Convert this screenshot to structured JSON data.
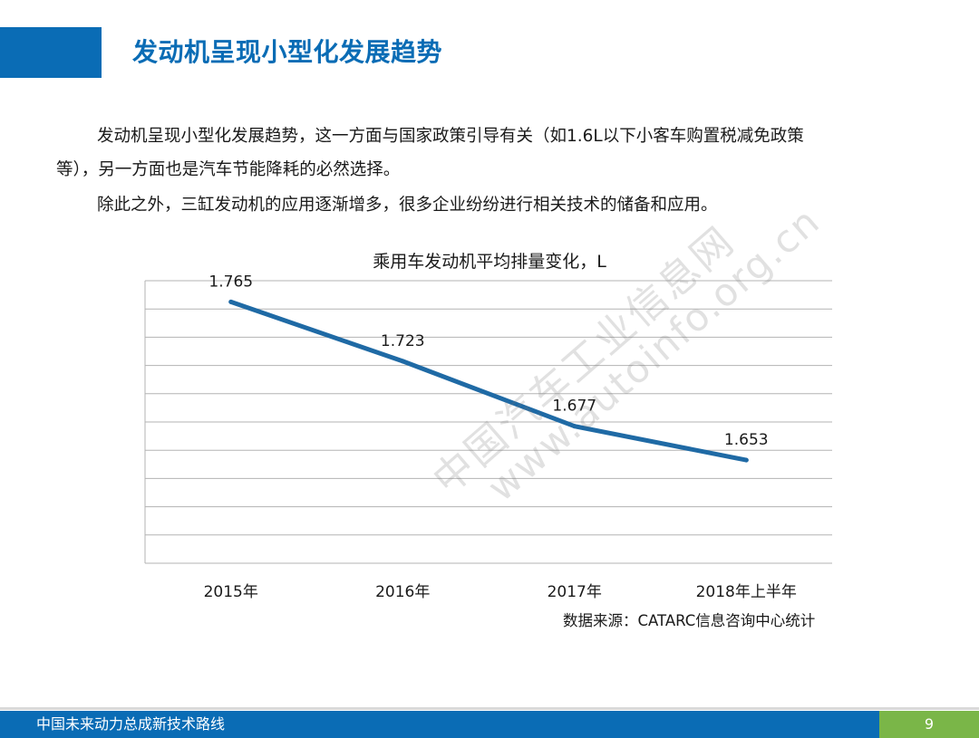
{
  "slide": {
    "title": "发动机呈现小型化发展趋势",
    "paragraph_line1": "发动机呈现小型化发展趋势，这一方面与国家政策引导有关（如1.6L以下小客车购置税减免政策",
    "paragraph_line2": "等），另一方面也是汽车节能降耗的必然选择。",
    "paragraph2": "除此之外，三缸发动机的应用逐渐增多，很多企业纷纷进行相关技术的储备和应用。",
    "source": "数据来源：CATARC信息咨询中心统计",
    "watermark_cn": "中国汽车工业信息网",
    "watermark_en": "www.autoinfo.org.cn"
  },
  "footer": {
    "text": "中国未来动力总成新技术路线",
    "page_number": "9"
  },
  "colors": {
    "accent": "#0a6cb5",
    "footer_green": "#7ab648",
    "line": "#1f6aa5",
    "grid": "#b3b3b3"
  },
  "chart_data": {
    "type": "line",
    "title": "乘用车发动机平均排量变化，L",
    "categories": [
      "2015年",
      "2016年",
      "2017年",
      "2018年上半年"
    ],
    "series": [
      {
        "values": [
          1.765,
          1.723,
          1.677,
          1.653
        ]
      }
    ],
    "data_labels": [
      "1.765",
      "1.723",
      "1.677",
      "1.653"
    ],
    "ylim": [
      1.58,
      1.78
    ],
    "grid": true,
    "y_axis_labels_shown": false,
    "legend": "none"
  }
}
